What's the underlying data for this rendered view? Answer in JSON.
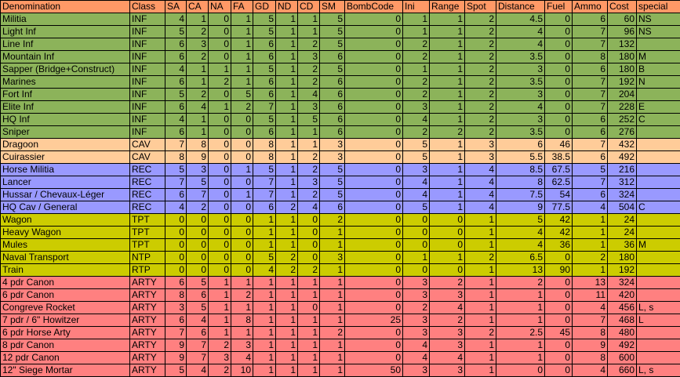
{
  "columns": [
    {
      "label": "Denomination",
      "width": 165,
      "align": "left"
    },
    {
      "label": "Class",
      "width": 45,
      "align": "left"
    },
    {
      "label": "SA",
      "width": 27,
      "align": "right"
    },
    {
      "label": "CA",
      "width": 28,
      "align": "right"
    },
    {
      "label": "NA",
      "width": 29,
      "align": "right"
    },
    {
      "label": "FA",
      "width": 28,
      "align": "right"
    },
    {
      "label": "GD",
      "width": 29,
      "align": "right"
    },
    {
      "label": "ND",
      "width": 28,
      "align": "right"
    },
    {
      "label": "CD",
      "width": 28,
      "align": "right"
    },
    {
      "label": "SM",
      "width": 32,
      "align": "right"
    },
    {
      "label": "BombCode",
      "width": 74,
      "align": "right"
    },
    {
      "label": "Ini",
      "width": 34,
      "align": "right"
    },
    {
      "label": "Range",
      "width": 45,
      "align": "right"
    },
    {
      "label": "Spot",
      "width": 40,
      "align": "right"
    },
    {
      "label": "Distance",
      "width": 62,
      "align": "right"
    },
    {
      "label": "Fuel",
      "width": 35,
      "align": "right"
    },
    {
      "label": "Ammo",
      "width": 45,
      "align": "right"
    },
    {
      "label": "Cost",
      "width": 37,
      "align": "right"
    },
    {
      "label": "special",
      "width": 56,
      "align": "left"
    }
  ],
  "colors": {
    "header": "#ff9966",
    "INF": "#8cb35a",
    "CAV": "#ffcc99",
    "REC": "#9999ff",
    "TPT": "#cccc00",
    "NTP": "#cccc00",
    "RTP": "#cccc00",
    "ARTY": "#ff8080"
  },
  "rows": [
    [
      "Militia",
      "INF",
      "4",
      "1",
      "0",
      "1",
      "5",
      "1",
      "1",
      "5",
      "0",
      "1",
      "1",
      "2",
      "4.5",
      "0",
      "6",
      "60",
      "NS"
    ],
    [
      "Light Inf",
      "INF",
      "5",
      "2",
      "0",
      "1",
      "5",
      "1",
      "1",
      "5",
      "0",
      "1",
      "1",
      "2",
      "4",
      "0",
      "7",
      "96",
      "NS"
    ],
    [
      "Line Inf",
      "INF",
      "6",
      "3",
      "0",
      "1",
      "6",
      "1",
      "2",
      "5",
      "0",
      "2",
      "1",
      "2",
      "4",
      "0",
      "7",
      "132",
      ""
    ],
    [
      "Mountain Inf",
      "INF",
      "6",
      "2",
      "0",
      "1",
      "6",
      "1",
      "3",
      "6",
      "0",
      "2",
      "1",
      "2",
      "3.5",
      "0",
      "8",
      "180",
      "M"
    ],
    [
      "Sapper (Bridge+Construct)",
      "INF",
      "4",
      "1",
      "1",
      "1",
      "5",
      "1",
      "2",
      "5",
      "0",
      "1",
      "1",
      "2",
      "3",
      "0",
      "6",
      "180",
      "B"
    ],
    [
      "Marines",
      "INF",
      "6",
      "1",
      "2",
      "1",
      "6",
      "1",
      "2",
      "6",
      "0",
      "2",
      "1",
      "2",
      "3.5",
      "0",
      "7",
      "192",
      "N"
    ],
    [
      "Fort Inf",
      "INF",
      "5",
      "2",
      "0",
      "5",
      "6",
      "1",
      "4",
      "6",
      "0",
      "2",
      "1",
      "2",
      "3",
      "0",
      "7",
      "204",
      ""
    ],
    [
      "Elite Inf",
      "INF",
      "6",
      "4",
      "1",
      "2",
      "7",
      "1",
      "3",
      "6",
      "0",
      "3",
      "1",
      "2",
      "4",
      "0",
      "7",
      "228",
      "E"
    ],
    [
      "HQ Inf",
      "INF",
      "4",
      "1",
      "0",
      "0",
      "5",
      "1",
      "5",
      "6",
      "0",
      "4",
      "1",
      "2",
      "3",
      "0",
      "6",
      "252",
      "C"
    ],
    [
      "Sniper",
      "INF",
      "6",
      "1",
      "0",
      "0",
      "6",
      "1",
      "1",
      "6",
      "0",
      "2",
      "2",
      "2",
      "3.5",
      "0",
      "6",
      "276",
      ""
    ],
    [
      "Dragoon",
      "CAV",
      "7",
      "8",
      "0",
      "0",
      "8",
      "1",
      "1",
      "3",
      "0",
      "5",
      "1",
      "3",
      "6",
      "46",
      "7",
      "432",
      ""
    ],
    [
      "Cuirassier",
      "CAV",
      "8",
      "9",
      "0",
      "0",
      "8",
      "1",
      "2",
      "3",
      "0",
      "5",
      "1",
      "3",
      "5.5",
      "38.5",
      "6",
      "492",
      ""
    ],
    [
      "Horse Militia",
      "REC",
      "5",
      "3",
      "0",
      "1",
      "5",
      "1",
      "2",
      "5",
      "0",
      "3",
      "1",
      "4",
      "8.5",
      "67.5",
      "5",
      "216",
      ""
    ],
    [
      "Lancer",
      "REC",
      "7",
      "5",
      "0",
      "0",
      "7",
      "1",
      "3",
      "5",
      "0",
      "4",
      "1",
      "4",
      "8",
      "62.5",
      "7",
      "312",
      ""
    ],
    [
      "Hussar / Chevaux-Léger",
      "REC",
      "6",
      "7",
      "0",
      "1",
      "7",
      "1",
      "2",
      "5",
      "0",
      "4",
      "1",
      "4",
      "7.5",
      "54",
      "6",
      "324",
      ""
    ],
    [
      "HQ Cav / General",
      "REC",
      "4",
      "2",
      "0",
      "0",
      "6",
      "2",
      "4",
      "6",
      "0",
      "5",
      "1",
      "4",
      "9",
      "77.5",
      "4",
      "504",
      "C"
    ],
    [
      "Wagon",
      "TPT",
      "0",
      "0",
      "0",
      "0",
      "1",
      "1",
      "0",
      "2",
      "0",
      "0",
      "0",
      "1",
      "5",
      "42",
      "1",
      "24",
      ""
    ],
    [
      "Heavy Wagon",
      "TPT",
      "0",
      "0",
      "0",
      "0",
      "1",
      "1",
      "0",
      "1",
      "0",
      "0",
      "0",
      "1",
      "4",
      "42",
      "1",
      "24",
      ""
    ],
    [
      "Mules",
      "TPT",
      "0",
      "0",
      "0",
      "0",
      "1",
      "1",
      "0",
      "1",
      "0",
      "0",
      "0",
      "1",
      "4",
      "36",
      "1",
      "36",
      "M"
    ],
    [
      "Naval Transport",
      "NTP",
      "0",
      "0",
      "0",
      "0",
      "5",
      "2",
      "0",
      "3",
      "0",
      "1",
      "1",
      "2",
      "6.5",
      "0",
      "2",
      "180",
      ""
    ],
    [
      "Train",
      "RTP",
      "0",
      "0",
      "0",
      "0",
      "4",
      "2",
      "2",
      "1",
      "0",
      "0",
      "0",
      "1",
      "13",
      "90",
      "1",
      "192",
      ""
    ],
    [
      "4 pdr Canon",
      "ARTY",
      "6",
      "5",
      "1",
      "1",
      "1",
      "1",
      "1",
      "1",
      "0",
      "3",
      "2",
      "1",
      "2",
      "0",
      "13",
      "324",
      ""
    ],
    [
      "6 pdr Canon",
      "ARTY",
      "8",
      "6",
      "1",
      "2",
      "1",
      "1",
      "1",
      "1",
      "0",
      "3",
      "3",
      "1",
      "1",
      "0",
      "11",
      "420",
      ""
    ],
    [
      "Congreve Rocket",
      "ARTY",
      "3",
      "5",
      "1",
      "1",
      "1",
      "1",
      "0",
      "1",
      "0",
      "2",
      "4",
      "1",
      "1",
      "0",
      "4",
      "456",
      "L, s"
    ],
    [
      "7 pdr / 6\" Howitzer",
      "ARTY",
      "6",
      "4",
      "1",
      "8",
      "1",
      "1",
      "1",
      "1",
      "25",
      "3",
      "2",
      "1",
      "1",
      "0",
      "7",
      "468",
      "L"
    ],
    [
      "6 pdr Horse Arty",
      "ARTY",
      "7",
      "6",
      "1",
      "1",
      "1",
      "1",
      "1",
      "2",
      "0",
      "3",
      "3",
      "2",
      "2.5",
      "45",
      "8",
      "480",
      ""
    ],
    [
      "8 pdr Canon",
      "ARTY",
      "9",
      "7",
      "2",
      "3",
      "1",
      "1",
      "1",
      "1",
      "0",
      "4",
      "3",
      "1",
      "1",
      "0",
      "9",
      "492",
      ""
    ],
    [
      "12 pdr Canon",
      "ARTY",
      "9",
      "7",
      "3",
      "4",
      "1",
      "1",
      "1",
      "1",
      "0",
      "4",
      "4",
      "1",
      "1",
      "0",
      "8",
      "600",
      ""
    ],
    [
      "12\" Siege Mortar",
      "ARTY",
      "5",
      "4",
      "2",
      "10",
      "1",
      "1",
      "1",
      "1",
      "50",
      "3",
      "3",
      "1",
      "0",
      "0",
      "4",
      "660",
      "L, s"
    ]
  ]
}
